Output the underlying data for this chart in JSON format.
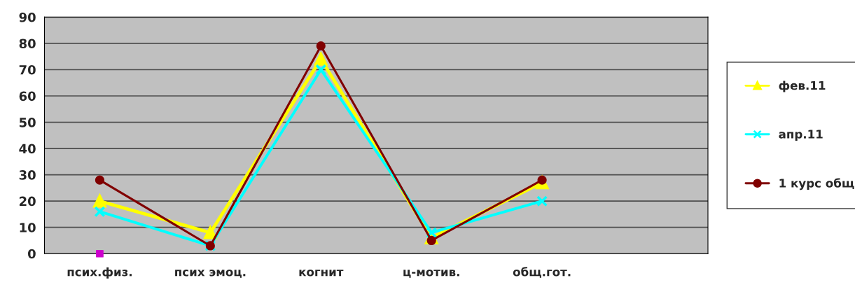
{
  "chart_data": {
    "type": "line",
    "categories": [
      "псих.физ.",
      "псих эмоц.",
      "когнит",
      "ц-мотив.",
      "общ.гот.",
      null
    ],
    "series": [
      {
        "name": "фев.11",
        "color": "#ffff00",
        "marker": "triangle",
        "values": [
          20,
          8,
          74,
          6,
          27,
          null
        ]
      },
      {
        "name": "апр.11",
        "color": "#00ffff",
        "marker": "cross",
        "values": [
          16,
          3,
          70,
          8,
          20,
          null
        ]
      },
      {
        "name": "1 курс общ",
        "color": "#800000",
        "marker": "circle",
        "values": [
          28,
          3,
          79,
          5,
          28,
          null
        ]
      },
      {
        "type": "scatter",
        "color": "#cc00cc",
        "marker": "square",
        "values": [
          0,
          null,
          null,
          null,
          null,
          null
        ]
      }
    ],
    "ylim": [
      0,
      90
    ],
    "yticks": [
      0,
      10,
      20,
      30,
      40,
      50,
      60,
      70,
      80,
      90
    ],
    "grid": "y",
    "legend": "right"
  }
}
